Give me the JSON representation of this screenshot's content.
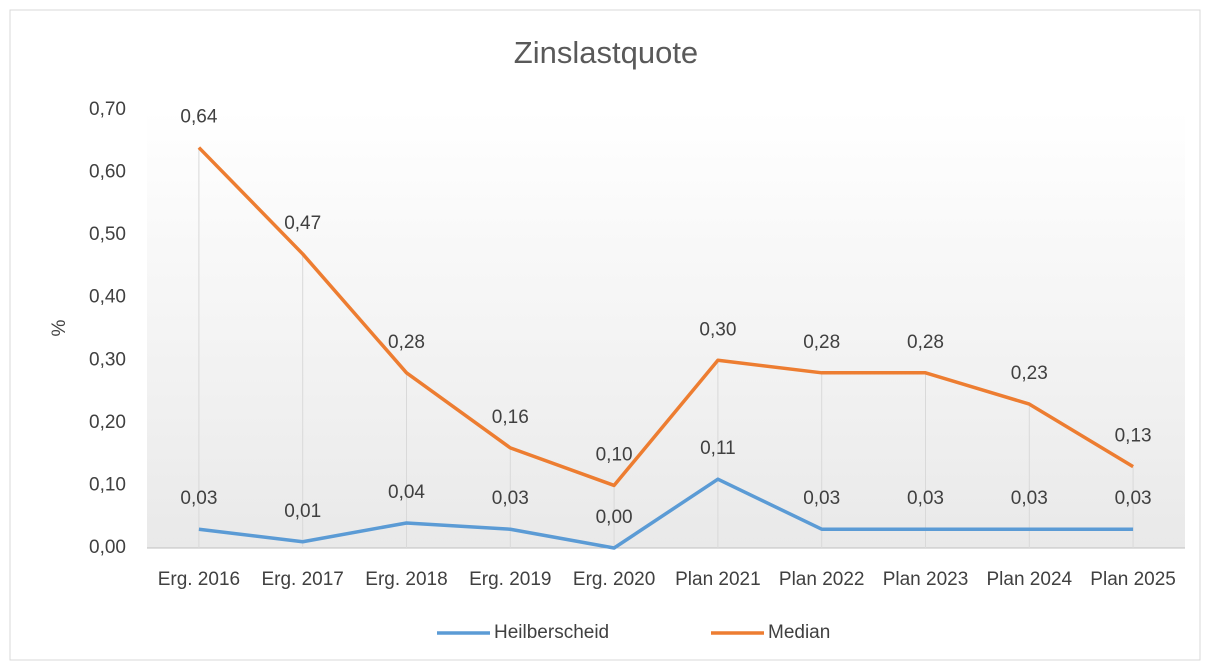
{
  "chart_data": {
    "type": "line",
    "title": "Zinslastquote",
    "y_label": "%",
    "categories": [
      "Erg. 2016",
      "Erg. 2017",
      "Erg. 2018",
      "Erg. 2019",
      "Erg. 2020",
      "Plan 2021",
      "Plan 2022",
      "Plan 2023",
      "Plan 2024",
      "Plan 2025"
    ],
    "series": [
      {
        "name": "Heilberscheid",
        "color": "#5b9bd5",
        "values": [
          0.03,
          0.01,
          0.04,
          0.03,
          0.0,
          0.11,
          0.03,
          0.03,
          0.03,
          0.03
        ],
        "value_labels": [
          "0,03",
          "0,01",
          "0,04",
          "0,03",
          "0,00",
          "0,11",
          "0,03",
          "0,03",
          "0,03",
          "0,03"
        ]
      },
      {
        "name": "Median",
        "color": "#ed7d31",
        "values": [
          0.64,
          0.47,
          0.28,
          0.16,
          0.1,
          0.3,
          0.28,
          0.28,
          0.23,
          0.13
        ],
        "value_labels": [
          "0,64",
          "0,47",
          "0,28",
          "0,16",
          "0,10",
          "0,30",
          "0,28",
          "0,28",
          "0,23",
          "0,13"
        ]
      }
    ],
    "ylim": [
      0,
      0.7
    ],
    "yticks": [
      {
        "value": 0,
        "label": "0,00"
      },
      {
        "value": 0.1,
        "label": "0,10"
      },
      {
        "value": 0.2,
        "label": "0,20"
      },
      {
        "value": 0.3,
        "label": "0,30"
      },
      {
        "value": 0.4,
        "label": "0,40"
      },
      {
        "value": 0.5,
        "label": "0,50"
      },
      {
        "value": 0.6,
        "label": "0,60"
      },
      {
        "value": 0.7,
        "label": "0,70"
      }
    ],
    "legend": "bottom"
  }
}
